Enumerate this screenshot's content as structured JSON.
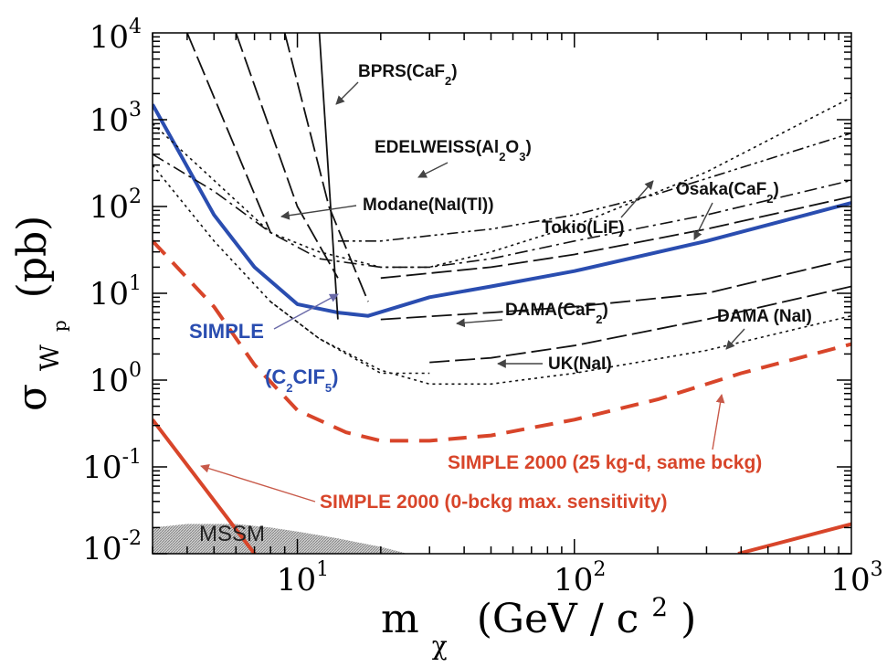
{
  "chart_data": {
    "type": "line",
    "xscale": "log",
    "yscale": "log",
    "xlim": [
      3,
      1000
    ],
    "ylim": [
      0.01,
      10000
    ],
    "grid": false,
    "xlabel": "m",
    "xlabel_sub": "χ",
    "xlabel_unit": "(GeV / c",
    "xlabel_unit_sup": "2",
    "xlabel_unit_close": ")",
    "ylabel": "σ",
    "ylabel_sub": "W",
    "ylabel_subsub": "p",
    "ylabel_unit": "(pb)",
    "x_ticks": [
      {
        "value": 10,
        "base": "10",
        "exp": "1"
      },
      {
        "value": 100,
        "base": "10",
        "exp": "2"
      },
      {
        "value": 1000,
        "base": "10",
        "exp": "3"
      }
    ],
    "y_ticks": [
      {
        "value": 10000,
        "base": "10",
        "exp": "4"
      },
      {
        "value": 1000,
        "base": "10",
        "exp": "3"
      },
      {
        "value": 100,
        "base": "10",
        "exp": "2"
      },
      {
        "value": 10,
        "base": "10",
        "exp": "1"
      },
      {
        "value": 1,
        "base": "10",
        "exp": "0"
      },
      {
        "value": 0.1,
        "base": "10",
        "exp": "-1"
      },
      {
        "value": 0.01,
        "base": "10",
        "exp": "-2"
      }
    ],
    "colors": {
      "simple": "#2a4db0",
      "simple2000": "#d8452a",
      "limits": "#111111",
      "mssm": "#9a9a9a"
    },
    "series": [
      {
        "key": "simple",
        "style": "solid-blue",
        "x": [
          3,
          5,
          7,
          10,
          14,
          18,
          30,
          50,
          100,
          300,
          1000
        ],
        "y": [
          1500,
          80,
          20,
          7.5,
          6,
          5.5,
          9,
          12,
          18,
          40,
          110
        ]
      },
      {
        "key": "simple2000_same_bckg",
        "style": "dashed-red",
        "x": [
          3,
          5,
          7,
          10,
          15,
          20,
          30,
          50,
          100,
          200,
          400,
          1000
        ],
        "y": [
          40,
          7,
          1.5,
          0.45,
          0.25,
          0.2,
          0.2,
          0.23,
          0.35,
          0.6,
          1.2,
          2.6
        ]
      },
      {
        "key": "simple2000_0_bckg_a",
        "style": "solid-red",
        "x": [
          3,
          7
        ],
        "y": [
          0.35,
          0.01
        ]
      },
      {
        "key": "simple2000_0_bckg_b",
        "style": "solid-red",
        "x": [
          390,
          1000
        ],
        "y": [
          0.01,
          0.022
        ]
      },
      {
        "key": "edelweiss",
        "style": "dotted",
        "x": [
          3,
          5,
          8,
          12,
          20,
          30,
          50,
          100,
          300,
          1000
        ],
        "y": [
          900,
          200,
          50,
          30,
          20,
          20,
          30,
          60,
          250,
          1800
        ]
      },
      {
        "key": "dama_nai",
        "style": "dotted",
        "x": [
          3,
          5,
          8,
          12,
          20,
          30,
          50,
          100,
          300,
          1000
        ],
        "y": [
          300,
          40,
          8,
          3,
          1.3,
          0.9,
          0.9,
          1.2,
          2.2,
          5.5
        ]
      },
      {
        "key": "dotted_mid",
        "style": "dotted",
        "x": [
          8,
          12,
          20,
          30
        ],
        "y": [
          8,
          3,
          1.2,
          1.2
        ]
      },
      {
        "key": "modane",
        "style": "dashdot",
        "x": [
          3,
          5,
          8,
          12,
          20,
          30,
          50,
          100,
          300,
          1000
        ],
        "y": [
          400,
          150,
          50,
          25,
          20,
          20,
          25,
          40,
          80,
          200
        ]
      },
      {
        "key": "tokio",
        "style": "dashdotdot",
        "x": [
          14,
          20,
          50,
          100,
          200,
          400,
          1000
        ],
        "y": [
          40,
          40,
          55,
          80,
          140,
          280,
          700
        ]
      },
      {
        "key": "osaka",
        "style": "longdash",
        "x": [
          20,
          50,
          100,
          300,
          1000
        ],
        "y": [
          15,
          20,
          28,
          55,
          130
        ]
      },
      {
        "key": "dama_caf2",
        "style": "longdash",
        "x": [
          20,
          50,
          100,
          300,
          1000
        ],
        "y": [
          5,
          6,
          7,
          10,
          25
        ]
      },
      {
        "key": "uk_nai",
        "style": "longdash",
        "x": [
          30,
          50,
          100,
          300,
          1000
        ],
        "y": [
          1.6,
          1.8,
          2.5,
          5,
          12
        ]
      },
      {
        "key": "steep_1",
        "style": "longdash",
        "x": [
          4,
          8
        ],
        "y": [
          10000,
          50
        ]
      },
      {
        "key": "steep_2",
        "style": "longdash",
        "x": [
          6,
          10,
          14
        ],
        "y": [
          10000,
          100,
          15
        ]
      },
      {
        "key": "steep_3",
        "style": "solid-thin",
        "x": [
          12,
          14
        ],
        "y": [
          10000,
          5
        ]
      },
      {
        "key": "steep_4",
        "style": "longdash",
        "x": [
          9,
          13,
          18
        ],
        "y": [
          10000,
          100,
          8
        ]
      }
    ],
    "mssm_region": {
      "x": [
        3,
        4,
        6,
        8,
        10,
        14,
        20,
        25
      ],
      "y": [
        0.02,
        0.022,
        0.022,
        0.02,
        0.018,
        0.015,
        0.012,
        0.01
      ]
    },
    "annotations": [
      {
        "key": "bprs",
        "text": "BPRS(CaF",
        "sub": "2",
        "close": ")",
        "cls": "ann-black",
        "arrow": true
      },
      {
        "key": "edelweiss",
        "text": "EDELWEISS(Al",
        "sub": "2",
        "mid": "O",
        "sub2": "3",
        "close": ")",
        "cls": "ann-black",
        "arrow": true
      },
      {
        "key": "modane",
        "text": "Modane(NaI(Tl))",
        "cls": "ann-black",
        "arrow": true
      },
      {
        "key": "osaka",
        "text": "Osaka(CaF",
        "sub": "2",
        "close": ")",
        "cls": "ann-black",
        "arrow": true
      },
      {
        "key": "tokio",
        "text": "Tokio(LiF)",
        "cls": "ann-black",
        "arrow": true
      },
      {
        "key": "dama_caf2",
        "text": "DAMA(CaF",
        "sub": "2",
        "close": ")",
        "cls": "ann-black",
        "arrow": true
      },
      {
        "key": "dama_nai",
        "text": "DAMA (NaI)",
        "cls": "ann-black",
        "arrow": true
      },
      {
        "key": "uk",
        "text": "UK(NaI)",
        "cls": "ann-black",
        "arrow": true
      },
      {
        "key": "simple",
        "text": "SIMPLE",
        "cls": "ann-blue",
        "arrow": true
      },
      {
        "key": "simple_formula",
        "text": "(C",
        "sub": "2",
        "mid": "ClF",
        "sub2": "5",
        "close": ")",
        "cls": "ann-blue",
        "arrow": false
      },
      {
        "key": "simple2000_same",
        "text": "SIMPLE 2000 (25 kg-d, same bckg)",
        "cls": "ann-red",
        "arrow": true
      },
      {
        "key": "simple2000_zero",
        "text": "SIMPLE 2000 (0-bckg max. sensitivity)",
        "cls": "ann-red",
        "arrow": true
      }
    ],
    "region_label": "MSSM"
  }
}
